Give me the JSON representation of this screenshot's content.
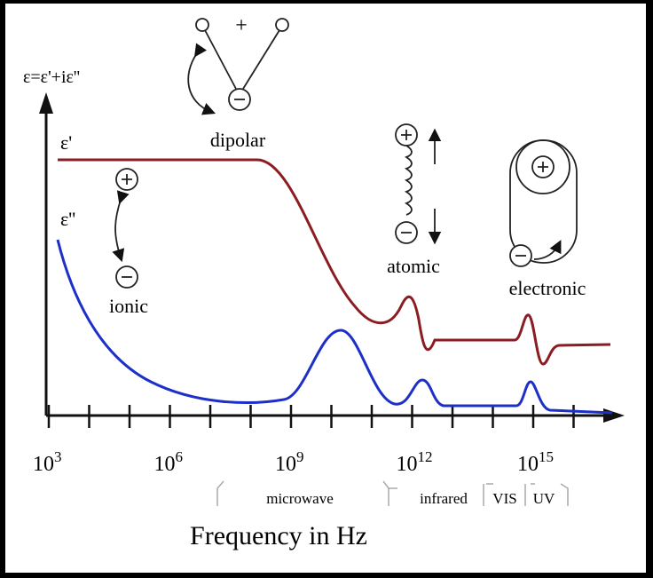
{
  "axis": {
    "y_label": "ε=ε'+iε''",
    "x_label": "Frequency in Hz"
  },
  "curves": {
    "real": "ε'",
    "imag": "ε''"
  },
  "ticks": [
    {
      "base": "10",
      "exp": "3"
    },
    {
      "base": "10",
      "exp": "6"
    },
    {
      "base": "10",
      "exp": "9"
    },
    {
      "base": "10",
      "exp": "12"
    },
    {
      "base": "10",
      "exp": "15"
    }
  ],
  "regions": [
    "microwave",
    "infrared",
    "VIS",
    "UV"
  ],
  "mechanisms": {
    "dipolar": "dipolar",
    "ionic": "ionic",
    "atomic": "atomic",
    "electronic": "electronic",
    "plus": "+"
  }
}
